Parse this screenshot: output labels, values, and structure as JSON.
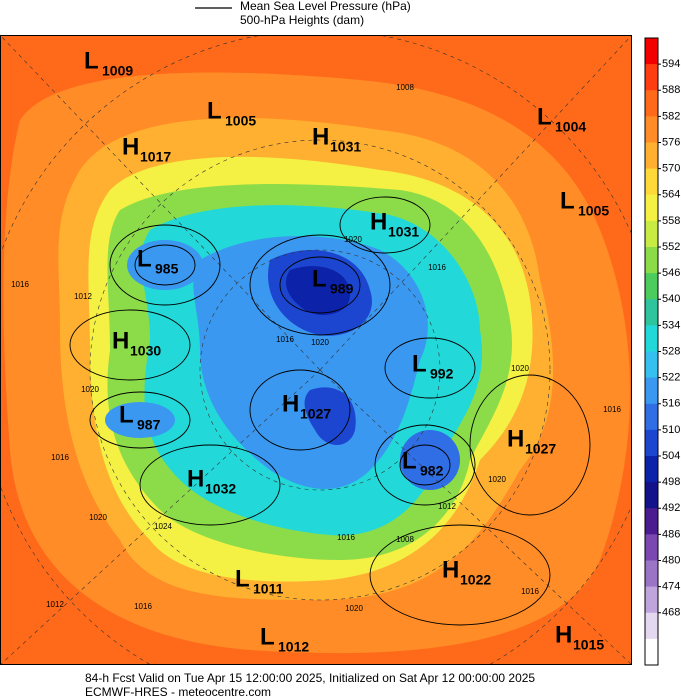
{
  "header": {
    "legend": [
      "Mean Sea Level Pressure (hPa)",
      "500-hPa Heights (dam)"
    ]
  },
  "centers": [
    {
      "letter": "L",
      "value": "1009"
    },
    {
      "letter": "L",
      "value": "1005"
    },
    {
      "letter": "H",
      "value": "1031"
    },
    {
      "letter": "H",
      "value": "1017"
    },
    {
      "letter": "L",
      "value": "1004"
    },
    {
      "letter": "L",
      "value": "1005"
    },
    {
      "letter": "H",
      "value": "1031"
    },
    {
      "letter": "L",
      "value": "985"
    },
    {
      "letter": "L",
      "value": "989"
    },
    {
      "letter": "H",
      "value": "1030"
    },
    {
      "letter": "L",
      "value": "992"
    },
    {
      "letter": "L",
      "value": "987"
    },
    {
      "letter": "H",
      "value": "1027"
    },
    {
      "letter": "H",
      "value": "1027"
    },
    {
      "letter": "L",
      "value": "982"
    },
    {
      "letter": "H",
      "value": "1032"
    },
    {
      "letter": "L",
      "value": "1011"
    },
    {
      "letter": "H",
      "value": "1022"
    },
    {
      "letter": "L",
      "value": "1012"
    },
    {
      "letter": "H",
      "value": "1015"
    }
  ],
  "contour_labels": [
    "1008",
    "1020",
    "1016",
    "1016",
    "1012",
    "1020",
    "1016",
    "1020",
    "1024",
    "1012",
    "1016",
    "1020",
    "1016",
    "1020",
    "1016",
    "1020",
    "1012",
    "1016",
    "1008",
    "1016",
    "1020"
  ],
  "colorbar": {
    "ticks": [
      "594",
      "588",
      "582",
      "576",
      "570",
      "564",
      "558",
      "552",
      "546",
      "540",
      "534",
      "528",
      "522",
      "516",
      "510",
      "504",
      "498",
      "492",
      "486",
      "480",
      "474",
      "468"
    ],
    "colors": [
      "#f20000",
      "#ff3d10",
      "#ff6a1a",
      "#ff8c26",
      "#ffb030",
      "#ffd93a",
      "#f4f044",
      "#c8ec44",
      "#8cdc4a",
      "#4ccc5c",
      "#2ec49e",
      "#22d8d8",
      "#35c0f0",
      "#3a98f0",
      "#2f6ee4",
      "#1c46d0",
      "#0c22a8",
      "#12128a",
      "#4a1c90",
      "#7a48b0",
      "#9c74c6",
      "#c0a4dc",
      "#e4d8f0",
      "#ffffff"
    ]
  },
  "footer": {
    "line1": "84-h Fcst Valid on Tue Apr 15 12:00:00 2025, Initialized on Sat Apr 12 00:00:00 2025",
    "line2": "ECMWF-HRES  - meteocentre.com"
  }
}
